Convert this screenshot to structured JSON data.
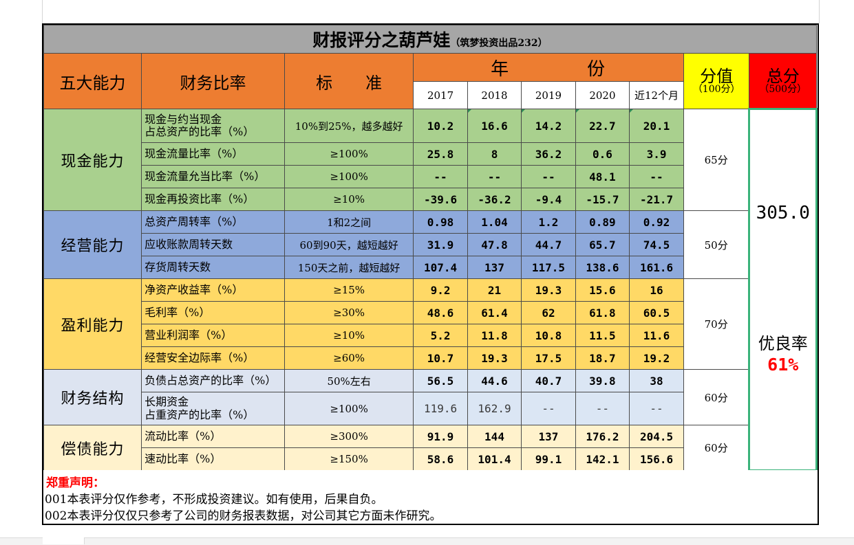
{
  "title": {
    "main": "财报评分之葫芦娃",
    "sub": "（筑梦投资出品232）"
  },
  "headers": {
    "ability": "五大能力",
    "ratio": "财务比率",
    "standard": "标　　准",
    "year_group": "年　　　　份",
    "years": [
      "2017",
      "2018",
      "2019",
      "2020",
      "近12个月"
    ],
    "score_label": "分值",
    "score_sub": "（100分）",
    "total_label": "总分",
    "total_sub": "（500分）"
  },
  "categories": [
    {
      "name": "现金能力",
      "score": "65分",
      "color": "#a9d08e",
      "rows": [
        {
          "ratio_l1": "现金与约当现金",
          "ratio_l2": "占总资产的比率（%）",
          "standard": "10%到25%，越多越好",
          "values": [
            "10.2",
            "16.6",
            "14.2",
            "22.7",
            "20.1"
          ]
        },
        {
          "ratio_l1": "现金流量比率（%）",
          "ratio_l2": "",
          "standard": "≥100%",
          "values": [
            "25.8",
            "8",
            "36.2",
            "0.6",
            "3.9"
          ]
        },
        {
          "ratio_l1": "现金流量允当比率（%）",
          "ratio_l2": "",
          "standard": "≥100%",
          "values": [
            "--",
            "--",
            "--",
            "48.1",
            "--"
          ]
        },
        {
          "ratio_l1": "现金再投资比率（%）",
          "ratio_l2": "",
          "standard": "≥10%",
          "values": [
            "-39.6",
            "-36.2",
            "-9.4",
            "-15.7",
            "-21.7"
          ]
        }
      ]
    },
    {
      "name": "经营能力",
      "score": "50分",
      "color": "#8ea9db",
      "rows": [
        {
          "ratio_l1": "总资产周转率（%）",
          "ratio_l2": "",
          "standard": "1和2之间",
          "values": [
            "0.98",
            "1.04",
            "1.2",
            "0.89",
            "0.92"
          ]
        },
        {
          "ratio_l1": "应收账款周转天数",
          "ratio_l2": "",
          "standard": "60到90天，越短越好",
          "values": [
            "31.9",
            "47.8",
            "44.7",
            "65.7",
            "74.5"
          ]
        },
        {
          "ratio_l1": "存货周转天数",
          "ratio_l2": "",
          "standard": "150天之前，越短越好",
          "values": [
            "107.4",
            "137",
            "117.5",
            "138.6",
            "161.6"
          ]
        }
      ]
    },
    {
      "name": "盈利能力",
      "score": "70分",
      "color": "#ffd966",
      "rows": [
        {
          "ratio_l1": "净资产收益率（%）",
          "ratio_l2": "",
          "standard": "≥15%",
          "values": [
            "9.2",
            "21",
            "19.3",
            "15.6",
            "16"
          ]
        },
        {
          "ratio_l1": "毛利率（%）",
          "ratio_l2": "",
          "standard": "≥30%",
          "values": [
            "48.6",
            "61.4",
            "62",
            "61.8",
            "60.5"
          ]
        },
        {
          "ratio_l1": "营业利润率（%）",
          "ratio_l2": "",
          "standard": "≥10%",
          "values": [
            "5.2",
            "11.8",
            "10.8",
            "11.5",
            "11.6"
          ]
        },
        {
          "ratio_l1": "经营安全边际率（%）",
          "ratio_l2": "",
          "standard": "≥60%",
          "values": [
            "10.7",
            "19.3",
            "17.5",
            "18.7",
            "19.2"
          ]
        }
      ]
    },
    {
      "name": "财务结构",
      "score": "60分",
      "color": "#dde4f1",
      "rows": [
        {
          "ratio_l1": "负债占总资产的比率（%）",
          "ratio_l2": "",
          "standard": "50%左右",
          "values": [
            "56.5",
            "44.6",
            "40.7",
            "39.8",
            "38"
          ]
        },
        {
          "ratio_l1": "长期资金",
          "ratio_l2": "占重资产的比率（%）",
          "standard": "≥100%",
          "values": [
            "119.6",
            "162.9",
            "--",
            "--",
            "--"
          ]
        }
      ]
    },
    {
      "name": "偿债能力",
      "score": "60分",
      "color": "#fff2cc",
      "rows": [
        {
          "ratio_l1": "流动比率（%）",
          "ratio_l2": "",
          "standard": "≥300%",
          "values": [
            "91.9",
            "144",
            "137",
            "176.2",
            "204.5"
          ]
        },
        {
          "ratio_l1": "速动比率（%）",
          "ratio_l2": "",
          "standard": "≥150%",
          "values": [
            "58.6",
            "101.4",
            "99.1",
            "142.1",
            "156.6"
          ]
        }
      ]
    }
  ],
  "total": {
    "value": "305.0",
    "rate_label": "优良率",
    "rate_value": "61%"
  },
  "notes": {
    "title": "郑重声明：",
    "lines": [
      "001本表评分仅作参考，不形成投资建议。如有使用，后果自负。",
      "002本表评分仅仅只参考了公司的财务报表数据，对公司其它方面未作研究。"
    ]
  },
  "colors": {
    "title_bg": "#a6a6a6",
    "header_orange": "#ed7d31",
    "score_yellow": "#ffff00",
    "total_red": "#ff0000",
    "total_border": "#3ab37a",
    "note_title": "#ff0000"
  }
}
